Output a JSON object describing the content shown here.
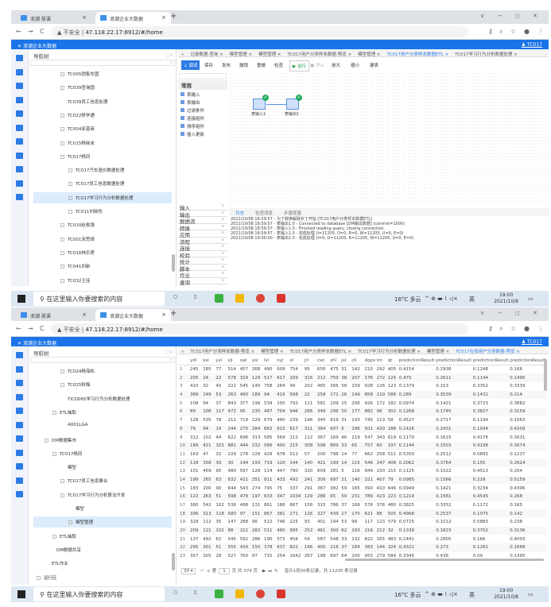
{
  "browser": {
    "tabs": [
      {
        "label": "浪潮·慧课"
      },
      {
        "label": "浪潮企业大数据"
      }
    ],
    "new_tab": "+",
    "nav": {
      "back": "←",
      "forward": "→",
      "reload": "C"
    },
    "security": "▲ 不安全 |",
    "url": "47.118.22.17:8912/#/home",
    "window_controls": [
      "∨",
      "−",
      "◻",
      "✕"
    ]
  },
  "app": {
    "title": "浪潮企业大数据",
    "user": "TC017",
    "nav_title": "导航树"
  },
  "taskbar": {
    "search_placeholder": "在这里输入你要搜索的内容",
    "weather": "16°C 多云",
    "ime": "英",
    "time": "19:00",
    "date": "2021/10/8"
  },
  "window1": {
    "tree": [
      {
        "label": "TC005销售车国",
        "level": 2,
        "exp": "+"
      },
      {
        "label": "TC039查询国",
        "level": 2,
        "exp": "+"
      },
      {
        "label": "TC039员工信息处理",
        "level": 2,
        "exp": ""
      },
      {
        "label": "TC022移学通",
        "level": 2,
        "exp": "+"
      },
      {
        "label": "TC004亚普商",
        "level": 2,
        "exp": "+"
      },
      {
        "label": "TC015杨晓未",
        "level": 2,
        "exp": "+"
      },
      {
        "label": "TC017杨凤",
        "level": 2,
        "exp": "−"
      },
      {
        "label": "TC017汽车退价数据处理",
        "level": 3,
        "exp": "+"
      },
      {
        "label": "TC017员工信息数据处理",
        "level": 3,
        "exp": "+"
      },
      {
        "label": "TC017学习行为分析数据处理",
        "level": 3,
        "exp": "+",
        "selected": true
      },
      {
        "label": "TC011刘晓彤",
        "level": 3,
        "exp": "+"
      },
      {
        "label": "TC010赵俊强",
        "level": 2,
        "exp": "+"
      },
      {
        "label": "TC001宋思琦",
        "level": 2,
        "exp": "+"
      },
      {
        "label": "TC016林乐莲",
        "level": 2,
        "exp": "+"
      },
      {
        "label": "TC041刘新",
        "level": 2,
        "exp": "+"
      },
      {
        "label": "TC032王佳",
        "level": 2,
        "exp": "+"
      }
    ],
    "tabs": [
      {
        "label": "记录数据-查询 ×"
      },
      {
        "label": "模型管理 ×"
      },
      {
        "label": "模型管理 ×"
      },
      {
        "label": "TC017用户分类样本数据-预览 ×"
      },
      {
        "label": "模型管理 ×"
      },
      {
        "label": "TC017用户分类样本数据ETL ×",
        "active": true
      },
      {
        "label": "TC017学习行为分析数据处理 ×"
      }
    ],
    "toolbar": [
      "↓ 调试",
      "保存",
      "发布",
      "撤销",
      "重做",
      "检查",
      "▶ 运行",
      "■ 停止",
      "放大",
      "缩小",
      "建表"
    ],
    "palette": {
      "group": "常用",
      "items": [
        "表输入",
        "表输出",
        "过滤条件",
        "连接组件",
        "排序组件",
        "插入更新"
      ]
    },
    "nodes": [
      "表输入1",
      "表输出1"
    ],
    "categories": [
      "输入",
      "输出",
      "数据流",
      "转换",
      "应用",
      "流程",
      "连接",
      "校验",
      "统计",
      "脚本",
      "作业",
      "查询"
    ],
    "log_tabs": [
      "日志",
      "检查消息",
      "步骤度量"
    ],
    "log": [
      "2021/10/08 18:59:57 - 为了转换解除补丁开始 [TC017用户分类样本数据ETL]",
      "2021/10/08 18:59:57 - 表输出1.0 - Connected to database [DM输出数据] (commit=1000)",
      "2021/10/08 18:59:57 - 表输入1.0 - Finished reading query, closing connection.",
      "2021/10/08 18:59:57 - 表输入1.0 - 完成处理 (I=11205, O=0, R=0, W=11205, U=0, E=0)",
      "2021/10/08 19:00:00 - 表输出1.0 - 完成处理 (I=0, O=11205, R=11205, W=11205, U=0, E=0)"
    ]
  },
  "window2": {
    "tree": [
      {
        "label": "TC024杨海松",
        "level": 2,
        "exp": "+"
      },
      {
        "label": "TC025秋梅",
        "level": 2,
        "exp": "+"
      },
      {
        "label": "TICD065学习行为分析数据处理",
        "level": 2,
        "exp": ""
      },
      {
        "label": "ETL抽取",
        "level": 1,
        "exp": "−"
      },
      {
        "label": "A001LGA",
        "level": 2,
        "exp": ""
      },
      {
        "label": "DM数据集市",
        "level": 0,
        "exp": "−"
      },
      {
        "label": "TC017杨凤",
        "level": 1,
        "exp": "−"
      },
      {
        "label": "模型",
        "level": 2,
        "exp": ""
      },
      {
        "label": "TC017员工信息聚合",
        "level": 2,
        "exp": "+"
      },
      {
        "label": "TC017学习行为分析算法开发",
        "level": 2,
        "exp": "−"
      },
      {
        "label": "模型",
        "level": 3,
        "exp": ""
      },
      {
        "label": "模型管理",
        "level": 3,
        "exp": "+",
        "selected": true
      },
      {
        "label": "ETL抽取",
        "level": 1,
        "exp": "+"
      },
      {
        "label": "DM数据共享",
        "level": 0.6,
        "exp": ""
      },
      {
        "label": "ETL作业",
        "level": 0,
        "exp": ""
      },
      {
        "label": "运行区",
        "level": -1,
        "exp": "+"
      }
    ],
    "tabs": [
      {
        "label": "TC017用户分类样本数据-预览 ×"
      },
      {
        "label": "模型管理 ×"
      },
      {
        "label": "TC017用户分类样本数据ETL ×"
      },
      {
        "label": "TC017学习行为分析数据处理 ×"
      },
      {
        "label": "模型管理 ×"
      },
      {
        "label": "TC017在线用户分类数据-预览 ×",
        "active": true
      }
    ],
    "table": {
      "columns": [
        "",
        "ydl",
        "ksl",
        "yyl",
        "sjl",
        "swl",
        "ysl",
        "lsl",
        "nyl",
        "xl",
        "jrl",
        "cwl",
        "shl",
        "jsl",
        "cll",
        "dqpx",
        "tm",
        "qt",
        "predictionResult0",
        "predictionResult1",
        "predictionResult2",
        "predictionResult3"
      ],
      "rows": [
        [
          "1",
          "245",
          "185",
          "77",
          "514",
          "457",
          "268",
          "490",
          "609",
          "754",
          "95",
          "656",
          "475",
          "51",
          "142",
          "210",
          "292",
          "405",
          "0.4154",
          "0.2938",
          "0.1248",
          "0.166"
        ],
        [
          "2",
          "205",
          "24",
          "22",
          "578",
          "329",
          "129",
          "517",
          "617",
          "209",
          "316",
          "212",
          "759",
          "38",
          "207",
          "176",
          "272",
          "124",
          "0.475",
          "0.2611",
          "0.1144",
          "0.1495"
        ],
        [
          "3",
          "410",
          "32",
          "45",
          "222",
          "545",
          "140",
          "758",
          "264",
          "99",
          "202",
          "465",
          "366",
          "58",
          "159",
          "928",
          "126",
          "123",
          "0.1379",
          "0.153",
          "0.3352",
          "0.3339"
        ],
        [
          "4",
          "389",
          "149",
          "53",
          "263",
          "490",
          "189",
          "94",
          "416",
          "568",
          "22",
          "258",
          "171",
          "26",
          "149",
          "858",
          "210",
          "588",
          "0.289",
          "0.3539",
          "0.1431",
          "0.214"
        ],
        [
          "5",
          "108",
          "94",
          "37",
          "843",
          "377",
          "199",
          "534",
          "150",
          "793",
          "111",
          "581",
          "109",
          "15",
          "206",
          "926",
          "172",
          "182",
          "0.0974",
          "0.1421",
          "0.3723",
          "0.3882"
        ],
        [
          "6",
          "89",
          "108",
          "117",
          "472",
          "95",
          "235",
          "447",
          "704",
          "946",
          "266",
          "349",
          "296",
          "50",
          "177",
          "882",
          "96",
          "302",
          "0.1268",
          "0.1745",
          "0.3827",
          "0.3159"
        ],
        [
          "7",
          "128",
          "535",
          "78",
          "211",
          "719",
          "229",
          "679",
          "440",
          "239",
          "146",
          "340",
          "619",
          "31",
          "143",
          "745",
          "113",
          "58",
          "0.4527",
          "0.2717",
          "0.1194",
          "0.1563"
        ],
        [
          "8",
          "79",
          "94",
          "19",
          "244",
          "270",
          "284",
          "662",
          "615",
          "617",
          "311",
          "384",
          "607",
          "6",
          "186",
          "501",
          "420",
          "188",
          "0.1426",
          "0.2431",
          "0.1934",
          "0.4209"
        ],
        [
          "9",
          "312",
          "102",
          "44",
          "622",
          "696",
          "313",
          "585",
          "569",
          "112",
          "112",
          "367",
          "169",
          "46",
          "219",
          "547",
          "343",
          "619",
          "0.1179",
          "0.1615",
          "0.4176",
          "0.3031"
        ],
        [
          "10",
          "189",
          "421",
          "101",
          "881",
          "444",
          "232",
          "566",
          "400",
          "215",
          "308",
          "598",
          "809",
          "33",
          "65",
          "757",
          "60",
          "197",
          "0.1144",
          "0.1503",
          "0.4198",
          "0.3074"
        ],
        [
          "11",
          "163",
          "47",
          "32",
          "229",
          "278",
          "228",
          "428",
          "678",
          "512",
          "57",
          "200",
          "798",
          "14",
          "77",
          "662",
          "258",
          "511",
          "0.5359",
          "0.2512",
          "0.0893",
          "0.1237"
        ],
        [
          "12",
          "118",
          "358",
          "30",
          "30",
          "144",
          "193",
          "719",
          "120",
          "144",
          "140",
          "421",
          "199",
          "14",
          "115",
          "546",
          "247",
          "408",
          "0.2062",
          "0.3764",
          "0.155",
          "0.2624"
        ],
        [
          "13",
          "101",
          "459",
          "95",
          "480",
          "597",
          "128",
          "114",
          "447",
          "790",
          "320",
          "609",
          "281",
          "5",
          "116",
          "949",
          "150",
          "215",
          "0.1125",
          "0.1522",
          "0.4513",
          "0.204"
        ],
        [
          "14",
          "199",
          "265",
          "63",
          "632",
          "421",
          "251",
          "811",
          "433",
          "492",
          "241",
          "309",
          "697",
          "21",
          "140",
          "321",
          "407",
          "79",
          "0.0985",
          "0.1566",
          "0.229",
          "0.5159"
        ],
        [
          "15",
          "183",
          "200",
          "90",
          "644",
          "543",
          "274",
          "745",
          "75",
          "337",
          "291",
          "387",
          "382",
          "59",
          "165",
          "390",
          "410",
          "646",
          "0.0949",
          "0.1421",
          "0.3234",
          "0.4396"
        ],
        [
          "16",
          "122",
          "263",
          "51",
          "598",
          "478",
          "197",
          "633",
          "347",
          "1034",
          "129",
          "286",
          "65",
          "50",
          "231",
          "789",
          "423",
          "223",
          "0.1214",
          "0.1561",
          "0.4545",
          "0.268"
        ],
        [
          "17",
          "380",
          "542",
          "102",
          "538",
          "498",
          "131",
          "861",
          "186",
          "867",
          "158",
          "315",
          "786",
          "37",
          "168",
          "576",
          "376",
          "480",
          "0.3825",
          "0.3352",
          "0.1172",
          "0.165"
        ],
        [
          "18",
          "396",
          "313",
          "118",
          "580",
          "97",
          "151",
          "867",
          "381",
          "271",
          "126",
          "327",
          "439",
          "27",
          "170",
          "621",
          "88",
          "505",
          "0.4968",
          "0.2537",
          "0.1075",
          "0.142"
        ],
        [
          "19",
          "328",
          "112",
          "35",
          "147",
          "288",
          "96",
          "522",
          "746",
          "225",
          "93",
          "401",
          "194",
          "53",
          "99",
          "117",
          "123",
          "579",
          "0.0725",
          "0.1012",
          "0.5883",
          "0.238"
        ],
        [
          "20",
          "209",
          "121",
          "102",
          "88",
          "222",
          "282",
          "511",
          "460",
          "995",
          "252",
          "461",
          "300",
          "62",
          "183",
          "216",
          "212",
          "32",
          "0.1339",
          "0.1823",
          "0.3702",
          "0.3136"
        ],
        [
          "21",
          "137",
          "492",
          "62",
          "545",
          "592",
          "286",
          "190",
          "573",
          "456",
          "54",
          "587",
          "548",
          "33",
          "132",
          "822",
          "165",
          "483",
          "0.1441",
          "0.2805",
          "0.166",
          "0.4093"
        ],
        [
          "22",
          "295",
          "301",
          "51",
          "555",
          "434",
          "150",
          "378",
          "637",
          "822",
          "146",
          "400",
          "216",
          "37",
          "164",
          "383",
          "144",
          "324",
          "0.4321",
          "0.273",
          "0.1281",
          "0.1668"
        ],
        [
          "23",
          "357",
          "305",
          "28",
          "527",
          "760",
          "97",
          "715",
          "254",
          "1042",
          "267",
          "198",
          "697",
          "64",
          "200",
          "955",
          "279",
          "584",
          "0.3345",
          "0.436",
          "0.09",
          "0.1395"
        ]
      ]
    },
    "pager": {
      "page_size": "30 ▾",
      "first": "⏮",
      "prev": "◀",
      "page_label": "第",
      "page": "1",
      "total_pages": "页 共 374 页",
      "next": "▶",
      "last": "⏭",
      "refresh": "↻",
      "summary": "显示1到30条记录，共 11205 条记录"
    }
  }
}
